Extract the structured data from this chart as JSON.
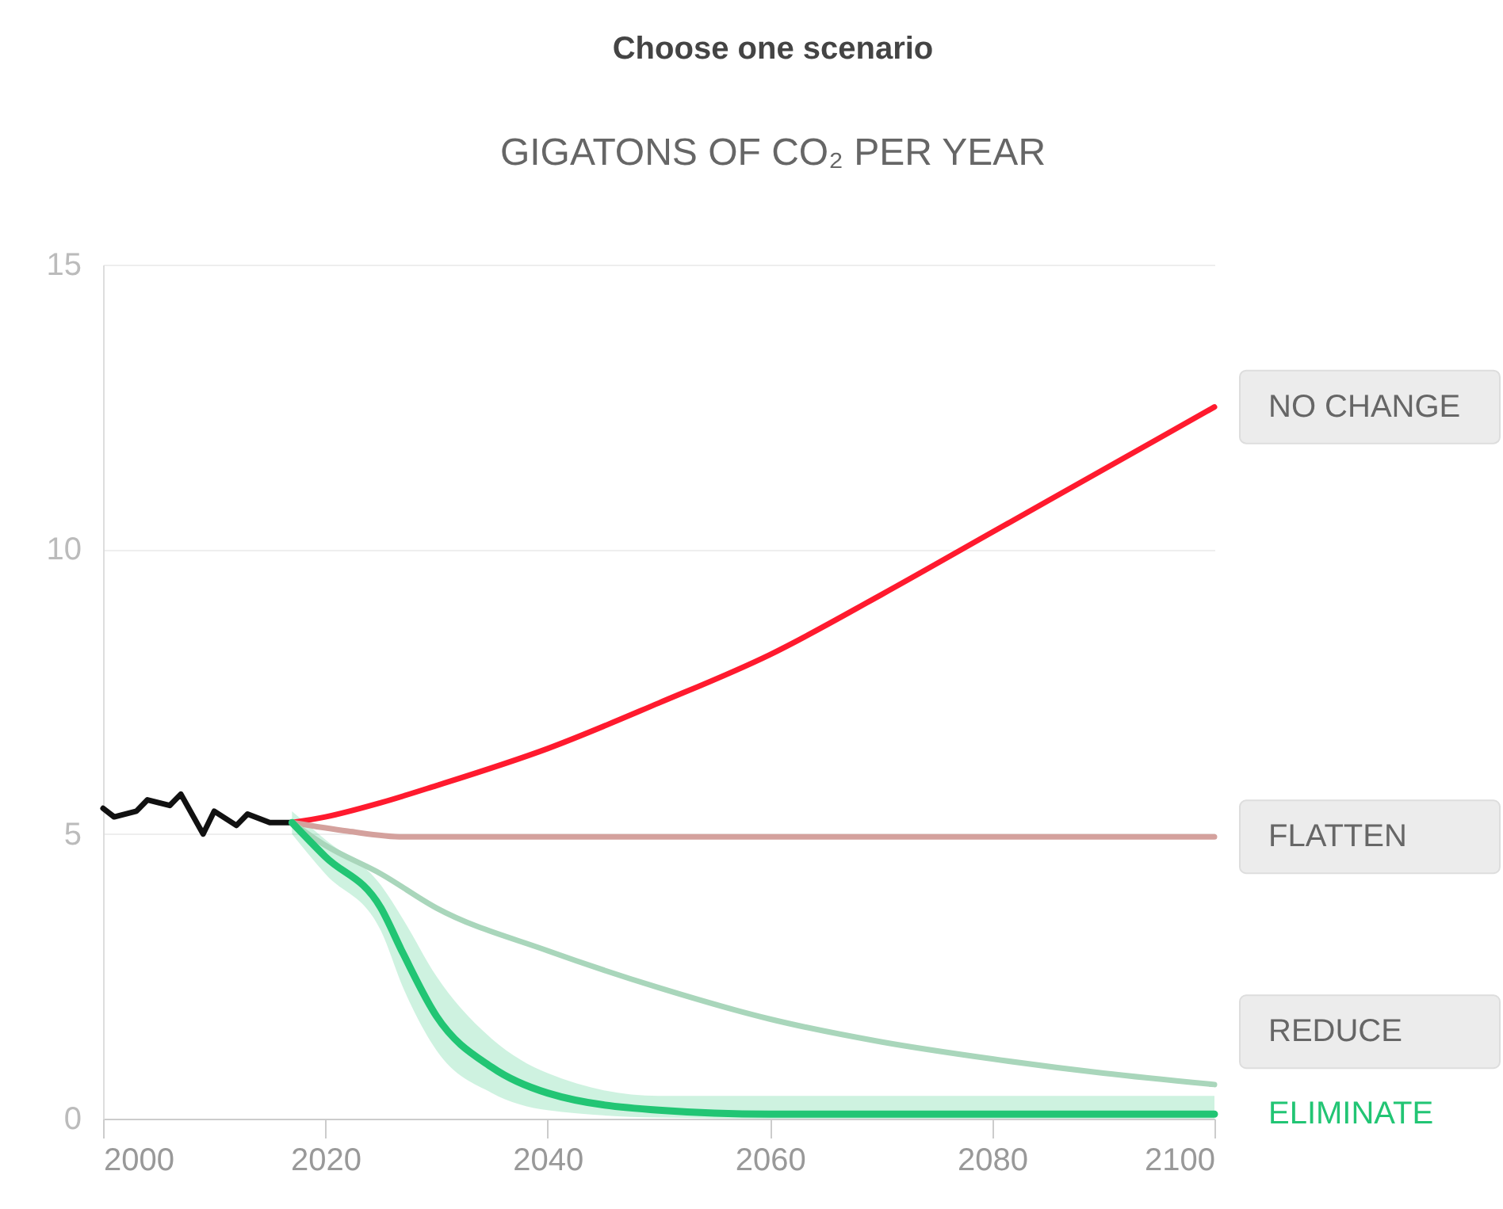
{
  "chart_data": {
    "type": "line",
    "title": "Choose one scenario",
    "ylabel": "GIGATONS OF CO₂ PER YEAR",
    "xlim": [
      2000,
      2100
    ],
    "xticks": [
      2000,
      2020,
      2040,
      2060,
      2080,
      2100
    ],
    "ylim": [
      0,
      15
    ],
    "yticks": [
      0,
      5,
      10,
      15
    ],
    "grid": "y",
    "legend": false,
    "marker": "none",
    "line_style": "solid",
    "series": [
      {
        "color": "#111111",
        "x": [
          2000,
          2001,
          2003,
          2004,
          2006,
          2007,
          2009,
          2010,
          2012,
          2013,
          2015,
          2017
        ],
        "values": [
          5.45,
          5.3,
          5.4,
          5.6,
          5.5,
          5.7,
          5.0,
          5.4,
          5.15,
          5.35,
          5.2,
          5.2
        ]
      },
      {
        "name": "NO CHANGE",
        "color": "#ff1a2e",
        "x": [
          2017,
          2020,
          2025,
          2030,
          2040,
          2050,
          2060,
          2070,
          2080,
          2090,
          2100
        ],
        "values": [
          5.2,
          5.3,
          5.55,
          5.85,
          6.5,
          7.3,
          8.15,
          9.2,
          10.3,
          11.4,
          12.5
        ]
      },
      {
        "name": "FLATTEN",
        "color": "#d4a19d",
        "x": [
          2017,
          2022,
          2027,
          2100
        ],
        "values": [
          5.2,
          5.05,
          4.95,
          4.95
        ]
      },
      {
        "name": "REDUCE",
        "color": "#a9d6bb",
        "x": [
          2017,
          2020,
          2025,
          2030,
          2040,
          2050,
          2060,
          2070,
          2080,
          2090,
          2100
        ],
        "values": [
          5.2,
          4.8,
          4.3,
          3.7,
          2.95,
          2.3,
          1.75,
          1.35,
          1.05,
          0.8,
          0.6
        ]
      },
      {
        "name": "ELIMINATE",
        "color": "#22c574",
        "x": [
          2017,
          2020,
          2025,
          2027,
          2030,
          2035,
          2040,
          2050,
          2060,
          2100
        ],
        "values": [
          5.2,
          4.6,
          3.7,
          2.9,
          1.8,
          0.9,
          0.45,
          0.15,
          0.08,
          0.08
        ],
        "lower": [
          5.0,
          4.3,
          3.3,
          2.3,
          1.2,
          0.45,
          0.15,
          0.02,
          0,
          0
        ],
        "upper": [
          5.4,
          4.9,
          4.1,
          3.5,
          2.5,
          1.4,
          0.8,
          0.4,
          0.4,
          0.4
        ]
      }
    ]
  }
}
